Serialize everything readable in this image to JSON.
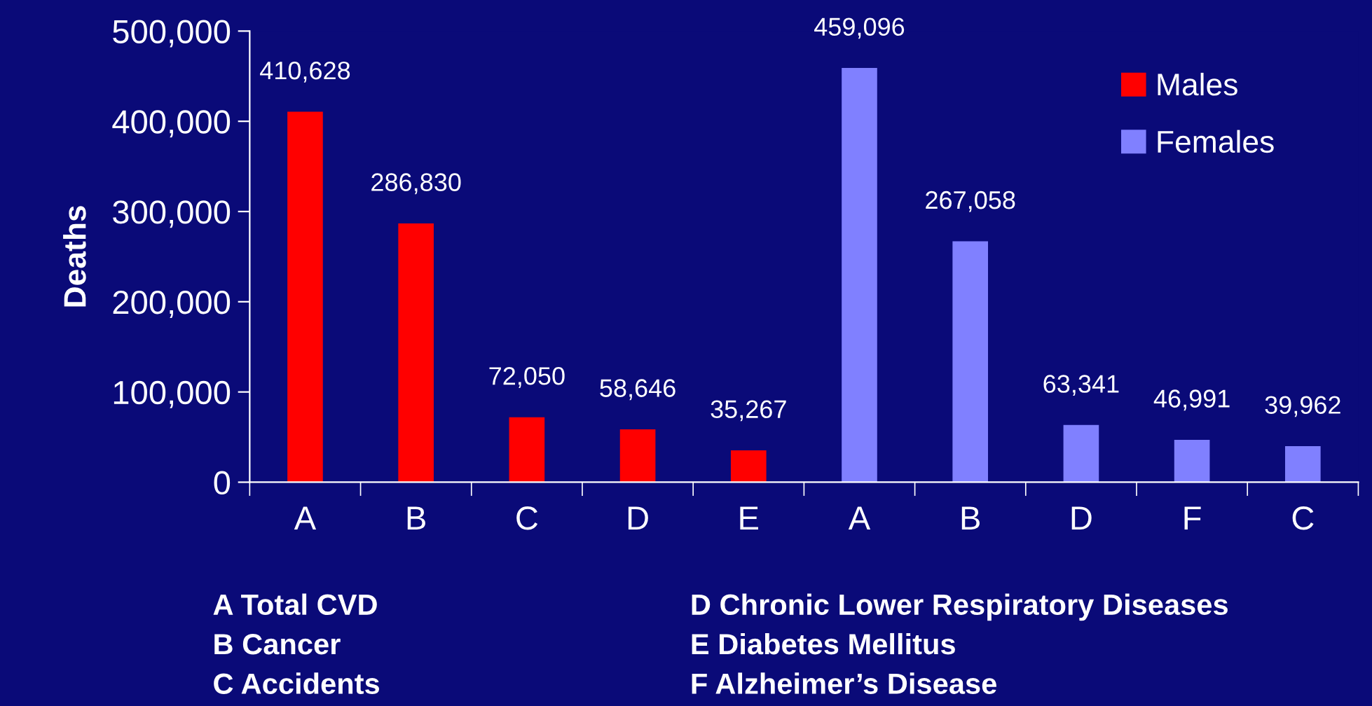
{
  "chart_data": {
    "type": "bar",
    "ylabel": "Deaths",
    "categories": [
      "A",
      "B",
      "C",
      "D",
      "E",
      "A",
      "B",
      "D",
      "F",
      "C"
    ],
    "series": [
      {
        "name": "Males",
        "color": "#ff0000",
        "values": [
          410628,
          286830,
          72050,
          58646,
          35267,
          null,
          null,
          null,
          null,
          null
        ],
        "value_labels": [
          "410,628",
          "286,830",
          "72,050",
          "58,646",
          "35,267",
          null,
          null,
          null,
          null,
          null
        ]
      },
      {
        "name": "Females",
        "color": "#8080ff",
        "values": [
          null,
          null,
          null,
          null,
          null,
          459096,
          267058,
          63341,
          46991,
          39962
        ],
        "value_labels": [
          null,
          null,
          null,
          null,
          null,
          "459,096",
          "267,058",
          "63,341",
          "46,991",
          "39,962"
        ]
      }
    ],
    "ylim": [
      0,
      500000
    ],
    "yticks": [
      {
        "value": 0,
        "label": "0"
      },
      {
        "value": 100000,
        "label": "100,000"
      },
      {
        "value": 200000,
        "label": "200,000"
      },
      {
        "value": 300000,
        "label": "300,000"
      },
      {
        "value": 400000,
        "label": "400,000"
      },
      {
        "value": 500000,
        "label": "500,000"
      }
    ],
    "grid": false,
    "legend": "top right",
    "annotations": [
      "A Total CVD",
      "B Cancer",
      "C Accidents",
      "D Chronic Lower Respiratory Diseases",
      "E Diabetes Mellitus",
      "F Alzheimer’s Disease"
    ]
  }
}
